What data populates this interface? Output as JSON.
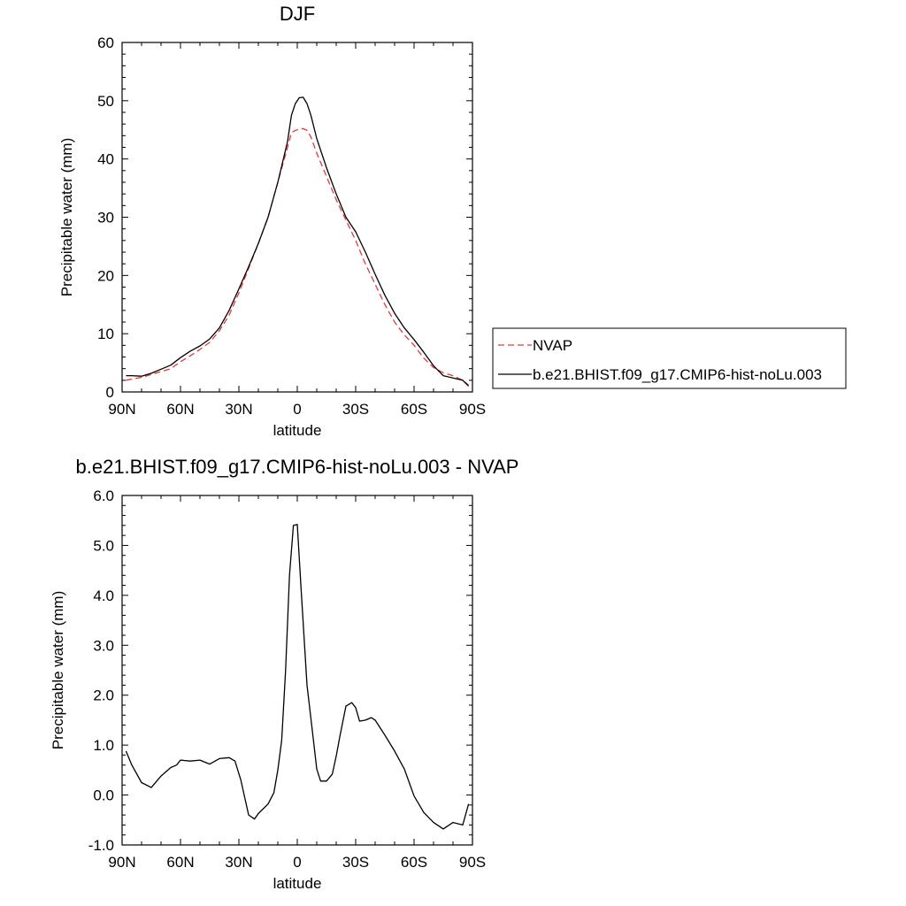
{
  "chart_data": [
    {
      "type": "line",
      "title": "DJF",
      "xlabel": "latitude",
      "ylabel": "Precipitable water (mm)",
      "xlim": [
        -90,
        90
      ],
      "ylim": [
        0,
        60
      ],
      "x_ticks": [
        -90,
        -60,
        -30,
        0,
        30,
        60,
        90
      ],
      "x_tick_labels": [
        "90N",
        "60N",
        "30N",
        "0",
        "30S",
        "60S",
        "90S"
      ],
      "y_ticks": [
        0,
        10,
        20,
        30,
        40,
        50,
        60
      ],
      "y_tick_labels": [
        "0",
        "10",
        "20",
        "30",
        "40",
        "50",
        "60"
      ],
      "legend_position": "right",
      "series": [
        {
          "name": "NVAP",
          "color": "#e8373a",
          "dash": "dashed",
          "x": [
            -88,
            -85,
            -80,
            -75,
            -70,
            -65,
            -60,
            -55,
            -50,
            -45,
            -40,
            -35,
            -30,
            -25,
            -20,
            -15,
            -10,
            -5,
            -3,
            -1,
            1,
            3,
            5,
            7,
            10,
            15,
            20,
            25,
            30,
            35,
            40,
            45,
            50,
            55,
            60,
            65,
            70,
            75,
            80,
            85,
            88
          ],
          "y": [
            2.0,
            2.2,
            2.5,
            3.0,
            3.5,
            4.0,
            5.2,
            6.2,
            7.3,
            8.5,
            10.5,
            13.2,
            17.0,
            21.2,
            25.5,
            30.0,
            36.0,
            42.0,
            44.5,
            44.9,
            45.1,
            45.2,
            44.9,
            43.8,
            41.0,
            37.0,
            33.0,
            29.5,
            26.0,
            22.0,
            18.5,
            15.0,
            12.0,
            9.8,
            8.0,
            5.8,
            4.2,
            3.3,
            2.8,
            2.0,
            1.2
          ]
        },
        {
          "name": "b.e21.BHIST.f09_g17.CMIP6-hist-noLu.003",
          "color": "#000000",
          "dash": "solid",
          "x": [
            -88,
            -85,
            -80,
            -75,
            -70,
            -65,
            -60,
            -55,
            -50,
            -45,
            -40,
            -35,
            -30,
            -25,
            -20,
            -15,
            -10,
            -5,
            -3,
            -1,
            1,
            3,
            5,
            7,
            10,
            15,
            20,
            25,
            30,
            35,
            40,
            45,
            50,
            55,
            60,
            65,
            70,
            75,
            80,
            85,
            88
          ],
          "y": [
            2.8,
            2.8,
            2.7,
            3.2,
            3.9,
            4.6,
            5.9,
            7.0,
            7.9,
            9.1,
            11.0,
            14.0,
            17.7,
            21.5,
            25.5,
            30.0,
            36.0,
            43.0,
            47.5,
            49.5,
            50.5,
            50.6,
            49.5,
            47.5,
            43.5,
            38.5,
            34.0,
            30.0,
            27.5,
            24.0,
            20.2,
            16.6,
            13.5,
            11.0,
            9.0,
            6.8,
            4.5,
            2.8,
            2.4,
            2.0,
            1.0
          ]
        }
      ]
    },
    {
      "type": "line",
      "title": "b.e21.BHIST.f09_g17.CMIP6-hist-noLu.003 - NVAP",
      "xlabel": "latitude",
      "ylabel": "Precipitable water (mm)",
      "xlim": [
        -90,
        90
      ],
      "ylim": [
        -1,
        6
      ],
      "x_ticks": [
        -90,
        -60,
        -30,
        0,
        30,
        60,
        90
      ],
      "x_tick_labels": [
        "90N",
        "60N",
        "30N",
        "0",
        "30S",
        "60S",
        "90S"
      ],
      "y_ticks": [
        -1,
        0,
        1,
        2,
        3,
        4,
        5,
        6
      ],
      "y_tick_labels": [
        "-1.0",
        "0.0",
        "1.0",
        "2.0",
        "3.0",
        "4.0",
        "5.0",
        "6.0"
      ],
      "series": [
        {
          "color": "#000000",
          "dash": "solid",
          "x": [
            -88,
            -85,
            -80,
            -75,
            -70,
            -65,
            -62,
            -60,
            -55,
            -50,
            -45,
            -40,
            -35,
            -32,
            -29,
            -25,
            -22,
            -20,
            -15,
            -12,
            -10,
            -8,
            -6,
            -4,
            -2,
            0,
            2,
            5,
            8,
            10,
            12,
            15,
            18,
            20,
            22,
            25,
            28,
            30,
            32,
            35,
            38,
            40,
            45,
            50,
            55,
            60,
            65,
            70,
            75,
            80,
            85,
            88
          ],
          "y": [
            0.88,
            0.6,
            0.25,
            0.15,
            0.38,
            0.55,
            0.6,
            0.7,
            0.68,
            0.7,
            0.62,
            0.73,
            0.75,
            0.68,
            0.3,
            -0.4,
            -0.48,
            -0.37,
            -0.18,
            0.05,
            0.5,
            1.1,
            2.5,
            4.4,
            5.4,
            5.42,
            4.1,
            2.2,
            1.2,
            0.52,
            0.28,
            0.28,
            0.42,
            0.78,
            1.2,
            1.78,
            1.85,
            1.75,
            1.48,
            1.5,
            1.55,
            1.5,
            1.2,
            0.88,
            0.52,
            -0.02,
            -0.35,
            -0.55,
            -0.68,
            -0.55,
            -0.6,
            -0.18
          ]
        }
      ]
    }
  ]
}
